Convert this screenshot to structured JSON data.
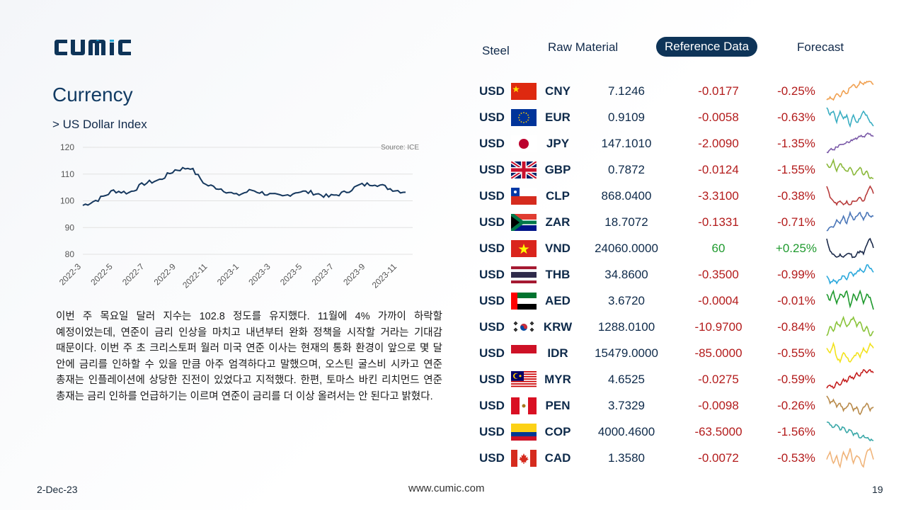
{
  "brand": {
    "logo_text": "CUMIC",
    "logo_color": "#0e3458",
    "accent_color": "#1ea7d8"
  },
  "nav": {
    "tabs": [
      {
        "label": "Steel",
        "active": false
      },
      {
        "label": "Raw Material",
        "active": false
      },
      {
        "label": "Reference Data",
        "active": true
      },
      {
        "label": "Forecast",
        "active": false
      }
    ]
  },
  "page": {
    "title": "Currency",
    "subtitle": "> US Dollar Index",
    "paragraph": "이번 주 목요일 달러 지수는 102.8 정도를 유지했다. 11월에 4% 가까이 하락할 예정이었는데, 연준이 금리 인상을 마치고 내년부터 완화 정책을 시작할 거라는 기대감 때문이다. 이번 주 초 크리스토퍼 월러 미국 연준 이사는 현재의 통화 환경이 앞으로 몇 달 안에 금리를 인하할 수 있을 만큼 아주 엄격하다고 말했으며, 오스틴 굴스비 시카고 연준 총재는 인플레이션에 상당한 진전이 있었다고 지적했다. 한편, 토마스 바킨 리치먼드 연준 총재는 금리 인하를 언급하기는 이르며 연준이 금리를 더 이상 올려서는 안 된다고 밝혔다."
  },
  "chart_data": {
    "type": "line",
    "title": "",
    "source": "Source: ICE",
    "xlabel": "",
    "ylabel": "",
    "ylim": [
      80,
      120
    ],
    "yticks": [
      "120",
      "110",
      "100",
      "90",
      "80"
    ],
    "xticks": [
      "2022-3",
      "2022-5",
      "2022-7",
      "2022-9",
      "2022-11",
      "2023-1",
      "2023-3",
      "2023-5",
      "2023-7",
      "2023-9",
      "2023-11"
    ],
    "grid": true,
    "line_color": "#16385e",
    "x": [
      "2022-03",
      "2022-04",
      "2022-05",
      "2022-06",
      "2022-07",
      "2022-08",
      "2022-09",
      "2022-10",
      "2022-11",
      "2022-12",
      "2023-01",
      "2023-02",
      "2023-03",
      "2023-04",
      "2023-05",
      "2023-06",
      "2023-07",
      "2023-08",
      "2023-09",
      "2023-10",
      "2023-11",
      "2023-12"
    ],
    "values": [
      98.3,
      100.5,
      103.8,
      103.0,
      106.5,
      107.8,
      111.5,
      112.5,
      106.0,
      104.5,
      102.0,
      104.0,
      102.5,
      101.5,
      103.5,
      103.0,
      101.5,
      103.0,
      105.8,
      106.5,
      104.5,
      103.2
    ]
  },
  "currencies": [
    {
      "base": "USD",
      "code": "CNY",
      "flag": "cn-flag",
      "rate": "7.1246",
      "change": "-0.0177",
      "pct": "-0.25%",
      "dir": "neg",
      "spark_color": "#f0a050",
      "spark": [
        3,
        4,
        3,
        5,
        4,
        6,
        5,
        7,
        8,
        7,
        9,
        8,
        9,
        9,
        8
      ]
    },
    {
      "base": "USD",
      "code": "EUR",
      "flag": "eu-flag",
      "rate": "0.9109",
      "change": "-0.0058",
      "pct": "-0.63%",
      "dir": "neg",
      "spark_color": "#3aaec2",
      "spark": [
        8,
        6,
        7,
        4,
        7,
        5,
        6,
        3,
        6,
        4,
        5,
        7,
        6,
        4,
        3
      ]
    },
    {
      "base": "USD",
      "code": "JPY",
      "flag": "jp-flag",
      "rate": "147.1010",
      "change": "-2.0090",
      "pct": "-1.35%",
      "dir": "neg",
      "spark_color": "#7b5aa8",
      "spark": [
        2,
        3,
        3,
        4,
        5,
        5,
        6,
        6,
        7,
        7,
        8,
        8,
        9,
        9,
        8
      ]
    },
    {
      "base": "USD",
      "code": "GBP",
      "flag": "gb-flag",
      "rate": "0.7872",
      "change": "-0.0124",
      "pct": "-1.55%",
      "dir": "neg",
      "spark_color": "#8ab83a",
      "spark": [
        7,
        6,
        8,
        5,
        7,
        6,
        5,
        6,
        4,
        5,
        6,
        4,
        5,
        3,
        3
      ]
    },
    {
      "base": "USD",
      "code": "CLP",
      "flag": "cl-flag",
      "rate": "868.0400",
      "change": "-3.3100",
      "pct": "-0.38%",
      "dir": "neg",
      "spark_color": "#b83c3c",
      "spark": [
        7,
        4,
        3,
        2,
        3,
        2,
        3,
        2,
        3,
        3,
        4,
        3,
        5,
        7,
        5
      ]
    },
    {
      "base": "USD",
      "code": "ZAR",
      "flag": "za-flag",
      "rate": "18.7072",
      "change": "-0.1331",
      "pct": "-0.71%",
      "dir": "neg",
      "spark_color": "#4a76b8",
      "spark": [
        2,
        3,
        3,
        5,
        4,
        6,
        4,
        7,
        5,
        6,
        7,
        5,
        7,
        6,
        6
      ]
    },
    {
      "base": "USD",
      "code": "VND",
      "flag": "vn-flag",
      "rate": "24060.0000",
      "change": "60",
      "pct": "+0.25%",
      "dir": "pos",
      "spark_color": "#1b2a4a",
      "spark": [
        8,
        4,
        3,
        2,
        3,
        2,
        3,
        3,
        2,
        3,
        4,
        3,
        6,
        8,
        5
      ]
    },
    {
      "base": "USD",
      "code": "THB",
      "flag": "th-flag",
      "rate": "34.8600",
      "change": "-0.3500",
      "pct": "-0.99%",
      "dir": "neg",
      "spark_color": "#2aa8dc",
      "spark": [
        5,
        3,
        4,
        3,
        4,
        5,
        4,
        6,
        5,
        6,
        7,
        6,
        8,
        7,
        6
      ]
    },
    {
      "base": "USD",
      "code": "AED",
      "flag": "ae-flag",
      "rate": "3.6720",
      "change": "-0.0004",
      "pct": "-0.01%",
      "dir": "neg",
      "spark_color": "#1f9a2e",
      "spark": [
        7,
        5,
        8,
        4,
        7,
        6,
        8,
        3,
        7,
        5,
        8,
        4,
        7,
        6,
        2
      ]
    },
    {
      "base": "USD",
      "code": "KRW",
      "flag": "kr-flag",
      "rate": "1288.0100",
      "change": "-10.9700",
      "pct": "-0.84%",
      "dir": "neg",
      "spark_color": "#8ac43a",
      "spark": [
        4,
        6,
        5,
        7,
        6,
        8,
        6,
        7,
        8,
        6,
        7,
        5,
        6,
        4,
        5
      ]
    },
    {
      "base": "USD",
      "code": "IDR",
      "flag": "id-flag",
      "rate": "15479.0000",
      "change": "-85.0000",
      "pct": "-0.55%",
      "dir": "neg",
      "spark_color": "#f2e21c",
      "spark": [
        6,
        5,
        7,
        4,
        3,
        5,
        4,
        3,
        4,
        5,
        4,
        6,
        5,
        7,
        6
      ]
    },
    {
      "base": "USD",
      "code": "MYR",
      "flag": "my-flag",
      "rate": "4.6525",
      "change": "-0.0275",
      "pct": "-0.59%",
      "dir": "neg",
      "spark_color": "#c41e1e",
      "spark": [
        2,
        3,
        2,
        4,
        3,
        5,
        4,
        6,
        5,
        7,
        6,
        8,
        7,
        8,
        7
      ]
    },
    {
      "base": "USD",
      "code": "PEN",
      "flag": "pe-flag",
      "rate": "3.7329",
      "change": "-0.0098",
      "pct": "-0.26%",
      "dir": "neg",
      "spark_color": "#b88a4a",
      "spark": [
        8,
        6,
        7,
        5,
        6,
        4,
        5,
        6,
        4,
        5,
        3,
        5,
        6,
        4,
        5
      ]
    },
    {
      "base": "USD",
      "code": "COP",
      "flag": "co-flag",
      "rate": "4000.4600",
      "change": "-63.5000",
      "pct": "-1.56%",
      "dir": "neg",
      "spark_color": "#3aa8a8",
      "spark": [
        9,
        8,
        7,
        8,
        6,
        7,
        5,
        6,
        4,
        5,
        3,
        4,
        3,
        2,
        2
      ]
    },
    {
      "base": "USD",
      "code": "CAD",
      "flag": "ca-flag",
      "rate": "1.3580",
      "change": "-0.0072",
      "pct": "-0.53%",
      "dir": "neg",
      "spark_color": "#f0b47a",
      "spark": [
        5,
        7,
        4,
        6,
        3,
        7,
        5,
        8,
        4,
        6,
        5,
        3,
        7,
        8,
        5
      ]
    }
  ],
  "footer": {
    "date": "2-Dec-23",
    "url": "www.cumic.com",
    "page": "19"
  }
}
